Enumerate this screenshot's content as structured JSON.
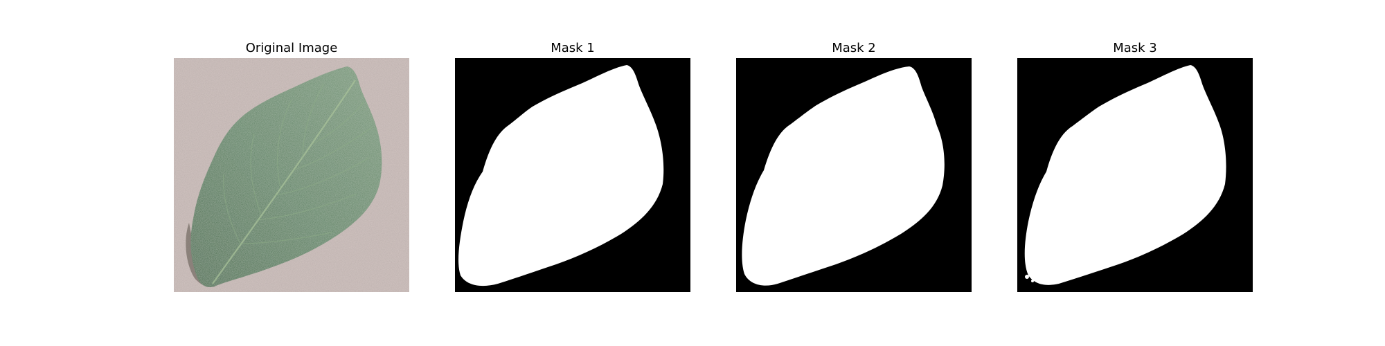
{
  "figure": {
    "panels": [
      {
        "title": "Original Image",
        "kind": "photo"
      },
      {
        "title": "Mask 1",
        "kind": "mask"
      },
      {
        "title": "Mask 2",
        "kind": "mask"
      },
      {
        "title": "Mask 3",
        "kind": "mask"
      }
    ]
  },
  "colors": {
    "background_sand": "#d2c4c1",
    "leaf_dark": "#3f6b45",
    "leaf_mid": "#587e5c",
    "leaf_light": "#7a9b7a",
    "mask_background": "#000000",
    "mask_foreground": "#ffffff"
  }
}
